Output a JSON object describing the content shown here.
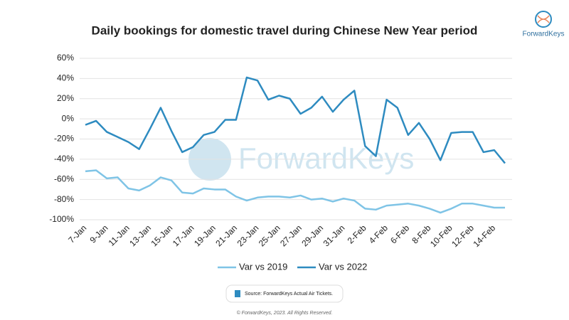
{
  "chart_data": {
    "type": "line",
    "title": "Daily bookings for domestic travel during Chinese New Year period",
    "categories": [
      "7-Jan",
      null,
      "9-Jan",
      null,
      "11-Jan",
      null,
      "13-Jan",
      null,
      "15-Jan",
      null,
      "17-Jan",
      null,
      "19-Jan",
      null,
      "21-Jan",
      null,
      "23-Jan",
      null,
      "25-Jan",
      null,
      "27-Jan",
      null,
      "29-Jan",
      null,
      "31-Jan",
      null,
      "2-Feb",
      null,
      "4-Feb",
      null,
      "6-Feb",
      null,
      "8-Feb",
      null,
      "10-Feb",
      null,
      "12-Feb",
      null,
      "14-Feb",
      null
    ],
    "series": [
      {
        "name": "Var vs 2019",
        "color": "#7fc4e6",
        "values": [
          -52,
          -51,
          -59,
          -58,
          -69,
          -71,
          -66,
          -58,
          -61,
          -73,
          -74,
          -69,
          -70,
          -70,
          -77,
          -81,
          -78,
          -77,
          -77,
          -78,
          -76,
          -80,
          -79,
          -82,
          -79,
          -81,
          -89,
          -90,
          -86,
          -85,
          -84,
          -86,
          -89,
          -93,
          -89,
          -84,
          -84,
          -86,
          -88,
          -88
        ]
      },
      {
        "name": "Var vs 2022",
        "color": "#2e8bc0",
        "values": [
          -6,
          -2,
          -13,
          -18,
          -23,
          -30,
          -10,
          11,
          -12,
          -33,
          -28,
          -16,
          -13,
          -1,
          -1,
          41,
          38,
          19,
          23,
          20,
          5,
          11,
          22,
          7,
          19,
          28,
          -27,
          -37,
          19,
          11,
          -16,
          -4,
          -20,
          -41,
          -14,
          -13,
          -13,
          -33,
          -31,
          -44
        ]
      }
    ],
    "ylim": [
      -100,
      60
    ],
    "yticks": [
      {
        "value": -100,
        "label": "-100%"
      },
      {
        "value": -80,
        "label": "-80%"
      },
      {
        "value": -60,
        "label": "-60%"
      },
      {
        "value": -40,
        "label": "-40%"
      },
      {
        "value": -20,
        "label": "-20%"
      },
      {
        "value": 0,
        "label": "0%"
      },
      {
        "value": 20,
        "label": "20%"
      },
      {
        "value": 40,
        "label": "40%"
      },
      {
        "value": 60,
        "label": "60%"
      }
    ],
    "grid": true,
    "legend": "bottom"
  },
  "logo": "ForwardKeys",
  "footer": {
    "source": "Source: ForwardKeys Actual Air Tickets.",
    "copyright": "© ForwardKeys, 2023. All Rights Reserved."
  }
}
